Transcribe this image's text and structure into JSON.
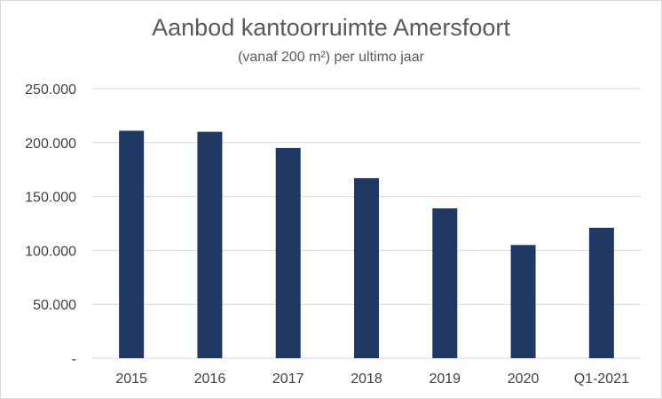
{
  "chart_data": {
    "type": "bar",
    "title": "Aanbod kantoorruimte Amersfoort",
    "subtitle": "(vanaf 200 m²) per ultimo jaar",
    "categories": [
      "2015",
      "2016",
      "2017",
      "2018",
      "2019",
      "2020",
      "Q1-2021"
    ],
    "values": [
      211000,
      210000,
      195000,
      167000,
      139000,
      105000,
      121000
    ],
    "ylim": [
      0,
      250000
    ],
    "yticks": [
      0,
      50000,
      100000,
      150000,
      200000,
      250000
    ],
    "ytick_labels": [
      "-",
      "50.000",
      "100.000",
      "150.000",
      "200.000",
      "250.000"
    ],
    "grid": true,
    "bar_color": "#1f3864",
    "grid_color": "#d9d9d9"
  }
}
